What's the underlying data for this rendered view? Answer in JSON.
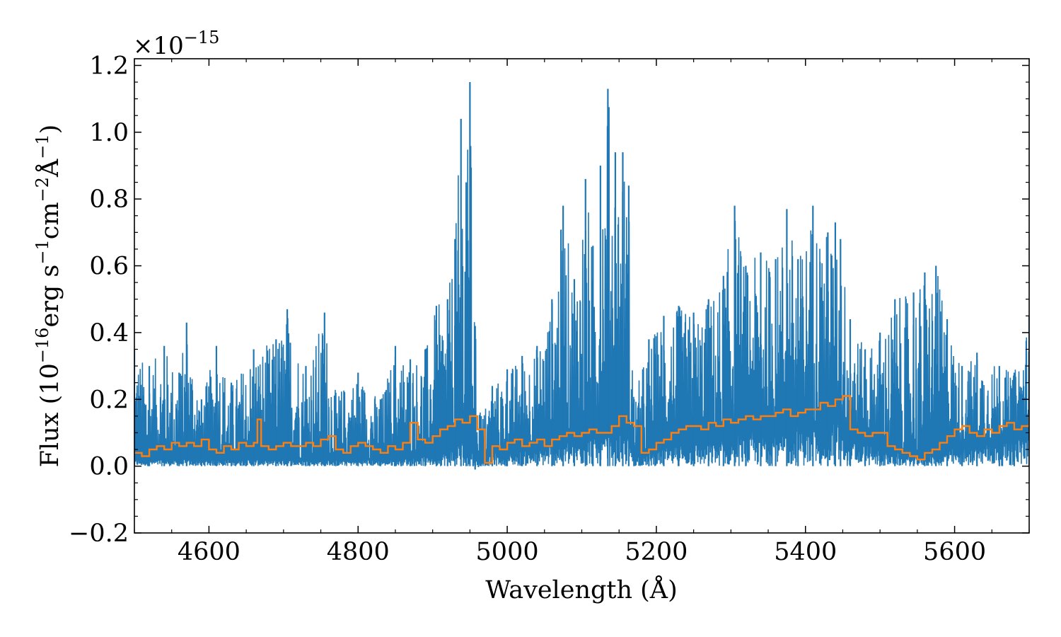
{
  "chart_data": {
    "type": "line",
    "title": "",
    "xlabel": "Wavelength (Å)",
    "ylabel_parts": {
      "pre": "Flux (10",
      "exp1": "−16",
      "mid1": "erg s",
      "exp2": "−1",
      "mid2": "cm",
      "exp3": "−2",
      "mid3": "Å",
      "exp4": "−1",
      "post": ")"
    },
    "y_offset": {
      "base": "×10",
      "exp": "−15"
    },
    "xlim": [
      4500,
      5700
    ],
    "ylim": [
      -0.2,
      1.22
    ],
    "x_ticks": [
      4600,
      4800,
      5000,
      5200,
      5400,
      5600
    ],
    "x_tick_labels": [
      "4600",
      "4800",
      "5000",
      "5200",
      "5400",
      "5600"
    ],
    "y_ticks": [
      -0.2,
      0.0,
      0.2,
      0.4,
      0.6,
      0.8,
      1.0,
      1.2
    ],
    "y_tick_labels": [
      "−0.2",
      "0.0",
      "0.2",
      "0.4",
      "0.6",
      "0.8",
      "1.0",
      "1.2"
    ],
    "grid": false,
    "legend": "none",
    "series": [
      {
        "style": "noisy-line",
        "color": "#1f77b4",
        "x": [
          4500,
          4520,
          4540,
          4560,
          4570,
          4590,
          4610,
          4630,
          4660,
          4690,
          4705,
          4730,
          4755,
          4770,
          4800,
          4830,
          4850,
          4870,
          4890,
          4905,
          4920,
          4930,
          4938,
          4945,
          4950,
          4957,
          4965,
          4980,
          5000,
          5020,
          5040,
          5060,
          5075,
          5090,
          5105,
          5115,
          5125,
          5135,
          5145,
          5155,
          5163,
          5170,
          5190,
          5210,
          5230,
          5250,
          5270,
          5290,
          5305,
          5320,
          5340,
          5360,
          5375,
          5390,
          5410,
          5430,
          5440,
          5447,
          5460,
          5480,
          5500,
          5520,
          5545,
          5560,
          5575,
          5590,
          5610,
          5630,
          5660,
          5680,
          5700
        ],
        "upper": [
          0.35,
          0.3,
          0.36,
          0.28,
          0.43,
          0.2,
          0.36,
          0.25,
          0.35,
          0.38,
          0.47,
          0.3,
          0.46,
          0.22,
          0.28,
          0.2,
          0.36,
          0.32,
          0.35,
          0.48,
          0.5,
          0.68,
          1.04,
          0.85,
          1.15,
          0.42,
          0.15,
          0.24,
          0.29,
          0.33,
          0.36,
          0.5,
          0.78,
          0.56,
          0.86,
          0.66,
          0.9,
          1.13,
          0.94,
          0.94,
          0.84,
          0.2,
          0.38,
          0.45,
          0.48,
          0.46,
          0.5,
          0.57,
          0.78,
          0.6,
          0.64,
          0.62,
          0.77,
          0.62,
          0.78,
          0.7,
          0.73,
          0.68,
          0.44,
          0.35,
          0.4,
          0.5,
          0.52,
          0.58,
          0.6,
          0.44,
          0.3,
          0.34,
          0.3,
          0.28,
          0.45
        ],
        "lower": [
          0.0,
          0.0,
          0.0,
          0.0,
          0.0,
          0.0,
          0.0,
          0.0,
          0.0,
          0.0,
          0.0,
          0.0,
          0.0,
          0.0,
          0.0,
          0.0,
          0.0,
          0.0,
          0.0,
          0.0,
          0.0,
          0.0,
          0.0,
          0.0,
          0.0,
          -0.01,
          0.0,
          0.0,
          0.0,
          0.0,
          0.0,
          0.0,
          0.0,
          0.0,
          0.0,
          0.0,
          0.0,
          0.0,
          0.0,
          0.0,
          0.0,
          0.0,
          0.0,
          0.0,
          0.0,
          0.0,
          0.0,
          0.0,
          0.0,
          0.0,
          0.0,
          0.0,
          0.0,
          0.0,
          0.0,
          0.0,
          0.0,
          0.0,
          0.0,
          0.0,
          0.0,
          0.0,
          0.0,
          0.0,
          0.0,
          0.0,
          0.0,
          0.0,
          0.0,
          0.0,
          0.0
        ],
        "base": [
          0.02,
          0.02,
          0.02,
          0.02,
          0.02,
          0.02,
          0.02,
          0.02,
          0.02,
          0.02,
          0.02,
          0.02,
          0.02,
          0.02,
          0.02,
          0.02,
          0.02,
          0.03,
          0.03,
          0.04,
          0.05,
          0.06,
          0.08,
          0.07,
          0.08,
          0.02,
          0.02,
          0.04,
          0.04,
          0.05,
          0.05,
          0.07,
          0.08,
          0.08,
          0.09,
          0.09,
          0.1,
          0.11,
          0.11,
          0.11,
          0.1,
          0.03,
          0.04,
          0.06,
          0.07,
          0.07,
          0.08,
          0.09,
          0.1,
          0.1,
          0.11,
          0.12,
          0.12,
          0.13,
          0.13,
          0.14,
          0.14,
          0.14,
          0.08,
          0.07,
          0.05,
          0.04,
          0.03,
          0.03,
          0.04,
          0.05,
          0.06,
          0.07,
          0.08,
          0.09,
          0.11
        ]
      },
      {
        "style": "step",
        "color": "#ff7f0e",
        "x": [
          4500,
          4510,
          4520,
          4530,
          4540,
          4550,
          4560,
          4570,
          4580,
          4590,
          4600,
          4610,
          4620,
          4630,
          4640,
          4650,
          4660,
          4665,
          4670,
          4680,
          4690,
          4700,
          4710,
          4720,
          4730,
          4740,
          4750,
          4760,
          4770,
          4780,
          4790,
          4800,
          4810,
          4820,
          4830,
          4840,
          4850,
          4860,
          4870,
          4880,
          4890,
          4900,
          4910,
          4920,
          4930,
          4940,
          4950,
          4960,
          4970,
          4980,
          4990,
          5000,
          5010,
          5020,
          5030,
          5040,
          5050,
          5060,
          5070,
          5080,
          5090,
          5100,
          5110,
          5120,
          5130,
          5140,
          5150,
          5160,
          5170,
          5180,
          5190,
          5200,
          5210,
          5220,
          5230,
          5240,
          5250,
          5260,
          5270,
          5280,
          5290,
          5300,
          5310,
          5320,
          5330,
          5340,
          5350,
          5360,
          5370,
          5380,
          5390,
          5400,
          5410,
          5420,
          5430,
          5440,
          5450,
          5460,
          5470,
          5480,
          5490,
          5500,
          5510,
          5520,
          5530,
          5540,
          5550,
          5560,
          5570,
          5580,
          5590,
          5600,
          5610,
          5620,
          5630,
          5640,
          5650,
          5660,
          5670,
          5680,
          5690,
          5700
        ],
        "y": [
          0.04,
          0.03,
          0.05,
          0.06,
          0.05,
          0.07,
          0.06,
          0.07,
          0.06,
          0.08,
          0.05,
          0.04,
          0.06,
          0.05,
          0.07,
          0.06,
          0.07,
          0.14,
          0.06,
          0.05,
          0.06,
          0.07,
          0.06,
          0.06,
          0.07,
          0.06,
          0.08,
          0.09,
          0.05,
          0.04,
          0.06,
          0.07,
          0.06,
          0.05,
          0.04,
          0.06,
          0.05,
          0.07,
          0.13,
          0.08,
          0.07,
          0.09,
          0.11,
          0.12,
          0.14,
          0.13,
          0.15,
          0.11,
          0.01,
          0.06,
          0.05,
          0.07,
          0.08,
          0.06,
          0.07,
          0.08,
          0.06,
          0.08,
          0.09,
          0.1,
          0.09,
          0.1,
          0.11,
          0.1,
          0.1,
          0.12,
          0.15,
          0.13,
          0.12,
          0.04,
          0.05,
          0.07,
          0.08,
          0.1,
          0.11,
          0.12,
          0.12,
          0.11,
          0.13,
          0.12,
          0.14,
          0.13,
          0.14,
          0.15,
          0.14,
          0.15,
          0.15,
          0.16,
          0.17,
          0.15,
          0.16,
          0.17,
          0.17,
          0.19,
          0.18,
          0.2,
          0.21,
          0.11,
          0.1,
          0.09,
          0.1,
          0.1,
          0.06,
          0.05,
          0.04,
          0.03,
          0.02,
          0.04,
          0.05,
          0.07,
          0.09,
          0.11,
          0.12,
          0.1,
          0.09,
          0.11,
          0.1,
          0.12,
          0.13,
          0.11,
          0.12,
          0.15
        ]
      }
    ]
  }
}
